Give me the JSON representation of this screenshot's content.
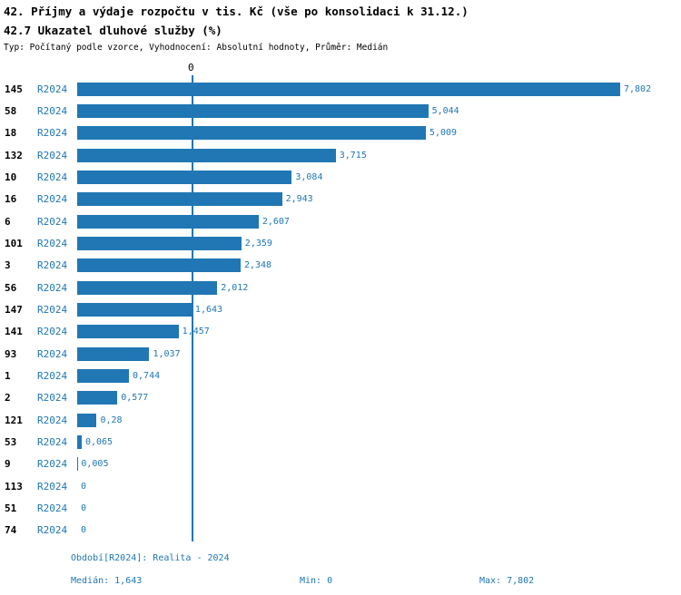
{
  "title1": "42. Příjmy a výdaje rozpočtu v tis. Kč (vše po konsolidaci k 31.12.)",
  "title2": "42.7 Ukazatel dluhové služby (%)",
  "subtitle": "Typ: Počítaný podle vzorce, Vyhodnocení: Absolutní hodnoty, Průměr: Medián",
  "chart_data": {
    "type": "bar",
    "orientation": "horizontal",
    "series_label": "R2024",
    "categories": [
      "145",
      "58",
      "18",
      "132",
      "10",
      "16",
      "6",
      "101",
      "3",
      "56",
      "147",
      "141",
      "93",
      "1",
      "2",
      "121",
      "53",
      "9",
      "113",
      "51",
      "74"
    ],
    "values": [
      7.802,
      5.044,
      5.009,
      3.715,
      3.084,
      2.943,
      2.607,
      2.359,
      2.348,
      2.012,
      1.643,
      1.457,
      1.037,
      0.744,
      0.577,
      0.28,
      0.065,
      0.005,
      0,
      0,
      0
    ],
    "value_labels": [
      "7,802",
      "5,044",
      "5,009",
      "3,715",
      "3,084",
      "2,943",
      "2,607",
      "2,359",
      "2,348",
      "2,012",
      "1,643",
      "1,457",
      "1,037",
      "0,744",
      "0,577",
      "0,28",
      "0,065",
      "0,005",
      "0",
      "0",
      "0"
    ],
    "xlim": [
      0,
      7.802
    ],
    "median": 1.643,
    "axis_tick_label": "0",
    "bar_color": "#2077b4",
    "accent_text_color": "#2077b4",
    "legend_position": "none",
    "grid": false
  },
  "footer": {
    "period": "Období[R2024]: Realita - 2024",
    "median": "Medián: 1,643",
    "min": "Min: 0",
    "max": "Max: 7,802"
  }
}
